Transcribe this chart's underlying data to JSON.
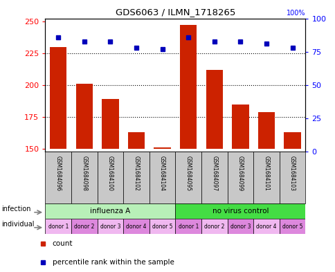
{
  "title": "GDS6063 / ILMN_1718265",
  "samples": [
    "GSM1684096",
    "GSM1684098",
    "GSM1684100",
    "GSM1684102",
    "GSM1684104",
    "GSM1684095",
    "GSM1684097",
    "GSM1684099",
    "GSM1684101",
    "GSM1684103"
  ],
  "counts": [
    230,
    201,
    189,
    163,
    151,
    247,
    212,
    185,
    179,
    163
  ],
  "percentile_ranks": [
    86,
    83,
    83,
    78,
    77,
    86,
    83,
    83,
    81,
    78
  ],
  "infection_groups": [
    {
      "label": "influenza A",
      "start": 0,
      "end": 5,
      "color": "#B8F0B8"
    },
    {
      "label": "no virus control",
      "start": 5,
      "end": 10,
      "color": "#44DD44"
    }
  ],
  "individual_labels": [
    "donor 1",
    "donor 2",
    "donor 3",
    "donor 4",
    "donor 5",
    "donor 1",
    "donor 2",
    "donor 3",
    "donor 4",
    "donor 5"
  ],
  "ind_colors_even": "#F0B8F0",
  "ind_colors_odd": "#DD88DD",
  "ylim_left": [
    148,
    252
  ],
  "ylim_right": [
    0,
    100
  ],
  "yticks_left": [
    150,
    175,
    200,
    225,
    250
  ],
  "yticks_right": [
    0,
    25,
    50,
    75,
    100
  ],
  "bar_color": "#CC2200",
  "dot_color": "#0000BB",
  "infection_label": "infection",
  "individual_label": "individual",
  "legend_count": "count",
  "legend_percentile": "percentile rank within the sample",
  "sample_box_color": "#C8C8C8",
  "right_axis_label": "100%"
}
